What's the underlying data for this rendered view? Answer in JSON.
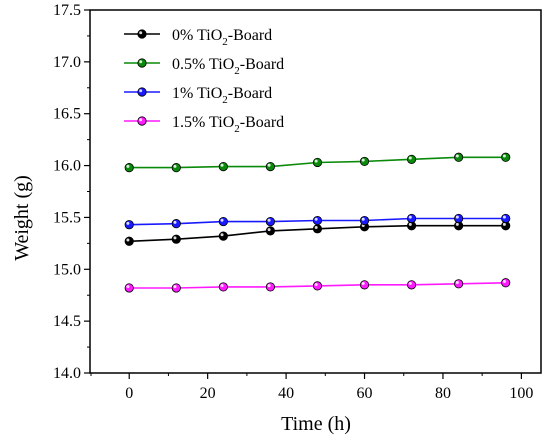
{
  "chart_data": {
    "type": "line",
    "xlabel": "Time (h)",
    "ylabel": "Weight (g)",
    "xlim": [
      -10,
      105
    ],
    "ylim": [
      14.0,
      17.5
    ],
    "xticks": [
      "0",
      "20",
      "40",
      "60",
      "80",
      "100"
    ],
    "yticks": [
      "14.0",
      "14.5",
      "15.0",
      "15.5",
      "16.0",
      "16.5",
      "17.0",
      "17.5"
    ],
    "grid": false,
    "legend": "top-left",
    "x": [
      0,
      12,
      24,
      36,
      48,
      60,
      72,
      84,
      96
    ],
    "series": [
      {
        "name_pre": "0% TiO",
        "name_sub": "2",
        "name_post": "-Board",
        "color": "#000000",
        "values": [
          15.27,
          15.29,
          15.32,
          15.37,
          15.39,
          15.41,
          15.42,
          15.42,
          15.42
        ]
      },
      {
        "name_pre": "0.5% TiO",
        "name_sub": "2",
        "name_post": "-Board",
        "color": "#0a8a0a",
        "values": [
          15.98,
          15.98,
          15.99,
          15.99,
          16.03,
          16.04,
          16.06,
          16.08,
          16.08
        ]
      },
      {
        "name_pre": "1% TiO",
        "name_sub": "2",
        "name_post": "-Board",
        "color": "#1a1aff",
        "values": [
          15.43,
          15.44,
          15.46,
          15.46,
          15.47,
          15.47,
          15.49,
          15.49,
          15.49
        ]
      },
      {
        "name_pre": "1.5% TiO",
        "name_sub": "2",
        "name_post": "-Board",
        "color": "#ff1aff",
        "values": [
          14.82,
          14.82,
          14.83,
          14.83,
          14.84,
          14.85,
          14.85,
          14.86,
          14.87
        ]
      }
    ]
  }
}
